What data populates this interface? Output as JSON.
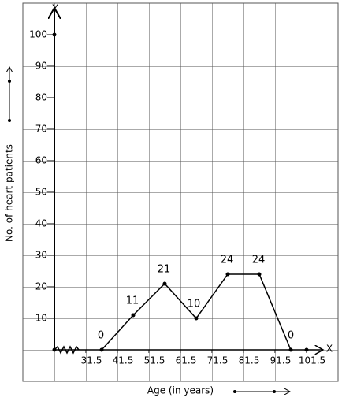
{
  "chart_data": {
    "type": "line",
    "x_label": "Age (in years)",
    "y_label": "No. of heart patients",
    "x_axis_letter": "X",
    "y_axis_letter": "Y",
    "x": [
      36.5,
      46.5,
      56.5,
      66.5,
      76.5,
      86.5,
      96.5
    ],
    "series": [
      {
        "color": "#000000",
        "values": [
          0,
          11,
          21,
          10,
          24,
          24,
          0
        ]
      }
    ],
    "xlim": [
      11.5,
      111.5
    ],
    "ylim": [
      -10,
      110
    ],
    "xticks": [
      31.5,
      41.5,
      51.5,
      61.5,
      71.5,
      81.5,
      91.5,
      101.5
    ],
    "yticks": [
      10,
      20,
      30,
      40,
      50,
      60,
      70,
      80,
      90,
      100
    ]
  }
}
